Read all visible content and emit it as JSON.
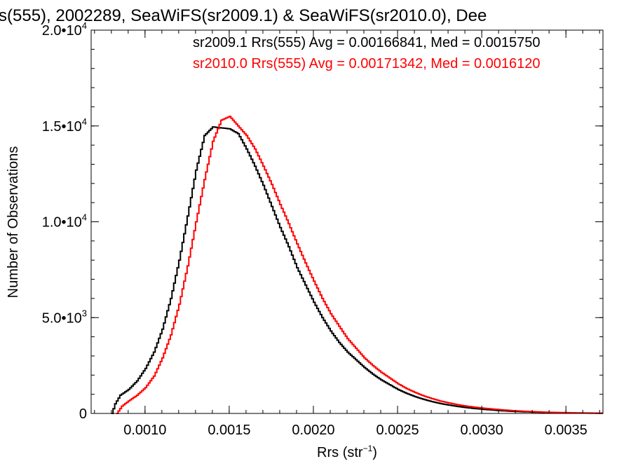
{
  "chart_data": {
    "type": "line",
    "step": true,
    "title": "s(555), 2002289, SeaWiFS(sr2009.1) & SeaWiFS(sr2010.0), Dee",
    "xlabel": "Rrs (str",
    "xlabel_sup": "−1",
    "xlabel_tail": ")",
    "ylabel": "Number of Observations",
    "xlim": [
      0.00068,
      0.00372
    ],
    "ylim": [
      0,
      20000
    ],
    "x_ticks": [
      {
        "value": 0.001,
        "label": "0.0010"
      },
      {
        "value": 0.0015,
        "label": "0.0015"
      },
      {
        "value": 0.002,
        "label": "0.0020"
      },
      {
        "value": 0.0025,
        "label": "0.0025"
      },
      {
        "value": 0.003,
        "label": "0.0030"
      },
      {
        "value": 0.0035,
        "label": "0.0035"
      }
    ],
    "y_ticks": [
      {
        "value": 0,
        "label": "0",
        "sup": ""
      },
      {
        "value": 5000,
        "label": "5.0•10",
        "sup": "3"
      },
      {
        "value": 10000,
        "label": "1.0•10",
        "sup": "4"
      },
      {
        "value": 15000,
        "label": "1.5•10",
        "sup": "4"
      },
      {
        "value": 20000,
        "label": "2.0•10",
        "sup": "4"
      }
    ],
    "x_minor_step": 0.0001,
    "y_minor_step": 1000,
    "grid": false,
    "legend": "top-right",
    "series": [
      {
        "name": "sr2009.1 Rrs(555) Avg = 0.00166841, Med = 0.0015750",
        "color": "#000000",
        "points": [
          [
            0.0008,
            0
          ],
          [
            0.00082,
            500
          ],
          [
            0.00085,
            950
          ],
          [
            0.0009,
            1250
          ],
          [
            0.00095,
            1700
          ],
          [
            0.001,
            2350
          ],
          [
            0.00105,
            3200
          ],
          [
            0.0011,
            4400
          ],
          [
            0.00115,
            6000
          ],
          [
            0.0012,
            8000
          ],
          [
            0.00125,
            10300
          ],
          [
            0.0013,
            12700
          ],
          [
            0.00135,
            14500
          ],
          [
            0.0014,
            14950
          ],
          [
            0.00145,
            14900
          ],
          [
            0.0015,
            14850
          ],
          [
            0.00155,
            14600
          ],
          [
            0.0016,
            13800
          ],
          [
            0.00165,
            12900
          ],
          [
            0.0017,
            11900
          ],
          [
            0.00175,
            10800
          ],
          [
            0.0018,
            9700
          ],
          [
            0.00185,
            8700
          ],
          [
            0.0019,
            7600
          ],
          [
            0.00195,
            6700
          ],
          [
            0.002,
            5800
          ],
          [
            0.00205,
            5000
          ],
          [
            0.0021,
            4300
          ],
          [
            0.00215,
            3700
          ],
          [
            0.0022,
            3200
          ],
          [
            0.00225,
            2800
          ],
          [
            0.0023,
            2400
          ],
          [
            0.00235,
            2050
          ],
          [
            0.0024,
            1750
          ],
          [
            0.00245,
            1500
          ],
          [
            0.0025,
            1250
          ],
          [
            0.00255,
            1050
          ],
          [
            0.0026,
            880
          ],
          [
            0.00265,
            740
          ],
          [
            0.0027,
            620
          ],
          [
            0.00275,
            520
          ],
          [
            0.0028,
            440
          ],
          [
            0.00285,
            370
          ],
          [
            0.0029,
            310
          ],
          [
            0.00295,
            260
          ],
          [
            0.003,
            220
          ],
          [
            0.0031,
            150
          ],
          [
            0.0032,
            100
          ],
          [
            0.0033,
            70
          ],
          [
            0.0034,
            45
          ],
          [
            0.0035,
            30
          ],
          [
            0.0036,
            18
          ],
          [
            0.00372,
            10
          ]
        ]
      },
      {
        "name": "sr2010.0 Rrs(555) Avg = 0.00171342, Med = 0.0016120",
        "color": "#ff0000",
        "points": [
          [
            0.00083,
            0
          ],
          [
            0.00086,
            380
          ],
          [
            0.0009,
            650
          ],
          [
            0.00095,
            950
          ],
          [
            0.001,
            1350
          ],
          [
            0.00105,
            1950
          ],
          [
            0.0011,
            2900
          ],
          [
            0.00115,
            4100
          ],
          [
            0.0012,
            5700
          ],
          [
            0.00125,
            7700
          ],
          [
            0.0013,
            10000
          ],
          [
            0.00135,
            12200
          ],
          [
            0.0014,
            14200
          ],
          [
            0.00145,
            15300
          ],
          [
            0.0015,
            15500
          ],
          [
            0.00155,
            15000
          ],
          [
            0.0016,
            14500
          ],
          [
            0.00165,
            13800
          ],
          [
            0.0017,
            12900
          ],
          [
            0.00175,
            11950
          ],
          [
            0.0018,
            10900
          ],
          [
            0.00185,
            9900
          ],
          [
            0.0019,
            8850
          ],
          [
            0.00195,
            7850
          ],
          [
            0.002,
            6900
          ],
          [
            0.00205,
            6000
          ],
          [
            0.0021,
            5200
          ],
          [
            0.00215,
            4550
          ],
          [
            0.0022,
            3900
          ],
          [
            0.00225,
            3400
          ],
          [
            0.0023,
            2900
          ],
          [
            0.00235,
            2500
          ],
          [
            0.0024,
            2150
          ],
          [
            0.00245,
            1850
          ],
          [
            0.0025,
            1550
          ],
          [
            0.00255,
            1300
          ],
          [
            0.0026,
            1100
          ],
          [
            0.00265,
            920
          ],
          [
            0.0027,
            780
          ],
          [
            0.00275,
            650
          ],
          [
            0.0028,
            550
          ],
          [
            0.00285,
            460
          ],
          [
            0.0029,
            390
          ],
          [
            0.00295,
            330
          ],
          [
            0.003,
            280
          ],
          [
            0.0031,
            200
          ],
          [
            0.0032,
            135
          ],
          [
            0.0033,
            95
          ],
          [
            0.0034,
            60
          ],
          [
            0.0035,
            40
          ],
          [
            0.0036,
            25
          ],
          [
            0.00372,
            14
          ]
        ]
      }
    ]
  }
}
